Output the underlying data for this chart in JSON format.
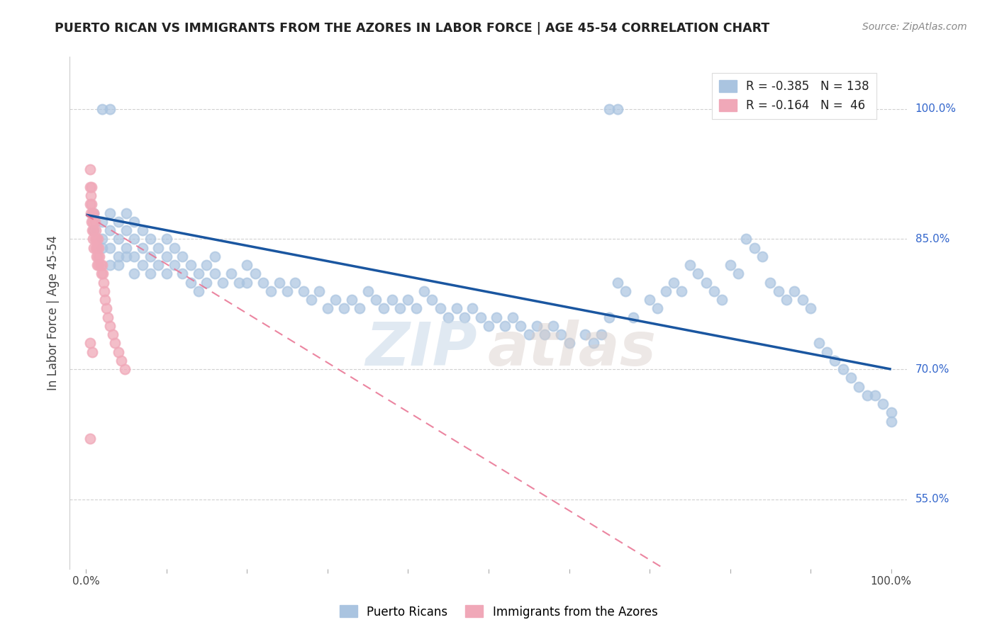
{
  "title": "PUERTO RICAN VS IMMIGRANTS FROM THE AZORES IN LABOR FORCE | AGE 45-54 CORRELATION CHART",
  "source": "Source: ZipAtlas.com",
  "ylabel": "In Labor Force | Age 45-54",
  "ytick_values": [
    0.55,
    0.7,
    0.85,
    1.0
  ],
  "ytick_labels": [
    "55.0%",
    "70.0%",
    "85.0%",
    "100.0%"
  ],
  "xlim": [
    -0.02,
    1.02
  ],
  "ylim": [
    0.47,
    1.06
  ],
  "legend_blue_R": "R = -0.385",
  "legend_blue_N": "N = 138",
  "legend_pink_R": "R = -0.164",
  "legend_pink_N": "N =  46",
  "blue_color": "#aac4e0",
  "pink_color": "#f0a8b8",
  "blue_line_color": "#1a56a0",
  "pink_line_color": "#e87090",
  "blue_line_start_y": 0.878,
  "blue_line_end_y": 0.7,
  "pink_line_start_y": 0.878,
  "pink_line_end_y": 0.31,
  "watermark_zip_color": "#c8d8e8",
  "watermark_atlas_color": "#d8ccc8",
  "grid_color": "#cccccc",
  "title_color": "#222222",
  "source_color": "#888888",
  "ylabel_color": "#444444",
  "ytick_color": "#3366cc",
  "xtick_color": "#444444",
  "background_color": "#ffffff",
  "dot_size": 100,
  "dot_linewidth": 1.5,
  "blue_scatter_x": [
    0.01,
    0.01,
    0.02,
    0.02,
    0.02,
    0.03,
    0.03,
    0.03,
    0.03,
    0.04,
    0.04,
    0.04,
    0.04,
    0.05,
    0.05,
    0.05,
    0.05,
    0.06,
    0.06,
    0.06,
    0.06,
    0.07,
    0.07,
    0.07,
    0.08,
    0.08,
    0.08,
    0.09,
    0.09,
    0.1,
    0.1,
    0.1,
    0.11,
    0.11,
    0.12,
    0.12,
    0.13,
    0.13,
    0.14,
    0.14,
    0.15,
    0.15,
    0.16,
    0.16,
    0.17,
    0.18,
    0.19,
    0.2,
    0.2,
    0.21,
    0.22,
    0.23,
    0.24,
    0.25,
    0.26,
    0.27,
    0.28,
    0.29,
    0.3,
    0.31,
    0.32,
    0.33,
    0.34,
    0.35,
    0.36,
    0.37,
    0.38,
    0.39,
    0.4,
    0.41,
    0.42,
    0.43,
    0.44,
    0.45,
    0.46,
    0.47,
    0.48,
    0.49,
    0.5,
    0.51,
    0.52,
    0.53,
    0.54,
    0.55,
    0.56,
    0.57,
    0.58,
    0.59,
    0.6,
    0.62,
    0.63,
    0.64,
    0.65,
    0.66,
    0.67,
    0.68,
    0.7,
    0.71,
    0.72,
    0.73,
    0.74,
    0.75,
    0.76,
    0.77,
    0.78,
    0.79,
    0.8,
    0.81,
    0.82,
    0.83,
    0.84,
    0.85,
    0.86,
    0.87,
    0.88,
    0.89,
    0.9,
    0.91,
    0.92,
    0.93,
    0.94,
    0.95,
    0.96,
    0.97,
    0.98,
    0.99,
    1.0,
    1.0,
    0.02,
    0.03,
    0.65,
    0.66
  ],
  "blue_scatter_y": [
    0.88,
    0.86,
    0.87,
    0.85,
    0.84,
    0.88,
    0.86,
    0.84,
    0.82,
    0.87,
    0.85,
    0.83,
    0.82,
    0.88,
    0.86,
    0.84,
    0.83,
    0.87,
    0.85,
    0.83,
    0.81,
    0.86,
    0.84,
    0.82,
    0.85,
    0.83,
    0.81,
    0.84,
    0.82,
    0.85,
    0.83,
    0.81,
    0.84,
    0.82,
    0.83,
    0.81,
    0.82,
    0.8,
    0.81,
    0.79,
    0.82,
    0.8,
    0.83,
    0.81,
    0.8,
    0.81,
    0.8,
    0.82,
    0.8,
    0.81,
    0.8,
    0.79,
    0.8,
    0.79,
    0.8,
    0.79,
    0.78,
    0.79,
    0.77,
    0.78,
    0.77,
    0.78,
    0.77,
    0.79,
    0.78,
    0.77,
    0.78,
    0.77,
    0.78,
    0.77,
    0.79,
    0.78,
    0.77,
    0.76,
    0.77,
    0.76,
    0.77,
    0.76,
    0.75,
    0.76,
    0.75,
    0.76,
    0.75,
    0.74,
    0.75,
    0.74,
    0.75,
    0.74,
    0.73,
    0.74,
    0.73,
    0.74,
    0.76,
    0.8,
    0.79,
    0.76,
    0.78,
    0.77,
    0.79,
    0.8,
    0.79,
    0.82,
    0.81,
    0.8,
    0.79,
    0.78,
    0.82,
    0.81,
    0.85,
    0.84,
    0.83,
    0.8,
    0.79,
    0.78,
    0.79,
    0.78,
    0.77,
    0.73,
    0.72,
    0.71,
    0.7,
    0.69,
    0.68,
    0.67,
    0.67,
    0.66,
    0.65,
    0.64,
    1.0,
    1.0,
    1.0,
    1.0
  ],
  "pink_scatter_x": [
    0.005,
    0.005,
    0.005,
    0.006,
    0.006,
    0.007,
    0.007,
    0.007,
    0.008,
    0.008,
    0.009,
    0.009,
    0.01,
    0.01,
    0.01,
    0.011,
    0.011,
    0.012,
    0.012,
    0.013,
    0.013,
    0.014,
    0.014,
    0.015,
    0.015,
    0.016,
    0.016,
    0.017,
    0.018,
    0.019,
    0.02,
    0.021,
    0.022,
    0.023,
    0.024,
    0.025,
    0.027,
    0.03,
    0.033,
    0.036,
    0.04,
    0.044,
    0.048,
    0.005,
    0.008,
    0.005
  ],
  "pink_scatter_y": [
    0.93,
    0.91,
    0.89,
    0.9,
    0.88,
    0.91,
    0.89,
    0.87,
    0.88,
    0.86,
    0.87,
    0.85,
    0.88,
    0.86,
    0.84,
    0.87,
    0.85,
    0.86,
    0.84,
    0.85,
    0.83,
    0.84,
    0.82,
    0.85,
    0.83,
    0.84,
    0.82,
    0.83,
    0.82,
    0.81,
    0.82,
    0.81,
    0.8,
    0.79,
    0.78,
    0.77,
    0.76,
    0.75,
    0.74,
    0.73,
    0.72,
    0.71,
    0.7,
    0.73,
    0.72,
    0.62
  ]
}
